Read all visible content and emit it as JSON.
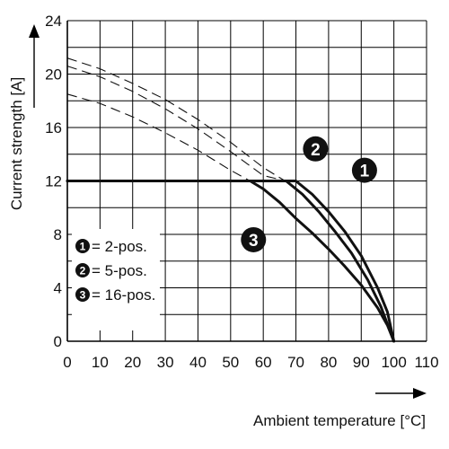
{
  "chart_data": {
    "type": "line",
    "xlabel": "Ambient temperature [°C]",
    "ylabel": "Current strength [A]",
    "xlim": [
      0,
      110
    ],
    "ylim": [
      0,
      24
    ],
    "x_ticks": [
      0,
      10,
      20,
      30,
      40,
      50,
      60,
      70,
      80,
      90,
      100,
      110
    ],
    "y_ticks": [
      0,
      4,
      8,
      12,
      16,
      20,
      24
    ],
    "grid": true,
    "legend_position": "bottom-left",
    "legend": [
      {
        "marker": "1",
        "label": "= 2-pos."
      },
      {
        "marker": "2",
        "label": "= 5-pos."
      },
      {
        "marker": "3",
        "label": "= 16-pos."
      }
    ],
    "series": [
      {
        "marker": "1",
        "style": "solid",
        "points": [
          [
            0,
            12
          ],
          [
            70,
            12
          ],
          [
            75,
            11
          ],
          [
            80,
            9.7
          ],
          [
            85,
            8.2
          ],
          [
            90,
            6.4
          ],
          [
            95,
            4
          ],
          [
            98,
            2.2
          ],
          [
            100,
            0
          ]
        ]
      },
      {
        "marker": "2",
        "style": "solid",
        "points": [
          [
            0,
            12
          ],
          [
            67,
            12
          ],
          [
            72,
            11
          ],
          [
            77,
            9.7
          ],
          [
            82,
            8.2
          ],
          [
            87,
            6.6
          ],
          [
            92,
            4.6
          ],
          [
            96,
            2.6
          ],
          [
            100,
            0
          ]
        ]
      },
      {
        "marker": "3",
        "style": "solid",
        "points": [
          [
            0,
            12
          ],
          [
            56,
            12
          ],
          [
            60,
            11.4
          ],
          [
            65,
            10.4
          ],
          [
            70,
            9.2
          ],
          [
            75,
            8.1
          ],
          [
            80,
            6.9
          ],
          [
            85,
            5.6
          ],
          [
            90,
            4.2
          ],
          [
            95,
            2.5
          ],
          [
            98,
            1.2
          ],
          [
            100,
            0
          ]
        ]
      },
      {
        "marker": "1",
        "style": "dashed",
        "points": [
          [
            0,
            21.2
          ],
          [
            10,
            20.4
          ],
          [
            20,
            19.3
          ],
          [
            30,
            18.1
          ],
          [
            40,
            16.6
          ],
          [
            50,
            14.9
          ],
          [
            60,
            13
          ],
          [
            70,
            11.5
          ]
        ]
      },
      {
        "marker": "2",
        "style": "dashed",
        "points": [
          [
            0,
            20.6
          ],
          [
            10,
            19.8
          ],
          [
            20,
            18.7
          ],
          [
            30,
            17.4
          ],
          [
            40,
            15.9
          ],
          [
            50,
            14.2
          ],
          [
            60,
            12.4
          ],
          [
            67,
            12
          ]
        ]
      },
      {
        "marker": "3",
        "style": "dashed",
        "points": [
          [
            0,
            18.5
          ],
          [
            10,
            17.8
          ],
          [
            20,
            16.8
          ],
          [
            30,
            15.6
          ],
          [
            40,
            14.3
          ],
          [
            50,
            12.8
          ],
          [
            56,
            12
          ]
        ]
      }
    ],
    "annotations": [
      {
        "marker": "1",
        "at": [
          91,
          12.8
        ]
      },
      {
        "marker": "2",
        "at": [
          76,
          14.4
        ]
      },
      {
        "marker": "3",
        "at": [
          57,
          7.6
        ]
      }
    ],
    "colors": {
      "line": "#111111",
      "grid": "#000000",
      "marker_fill": "#111111",
      "marker_text": "#ffffff"
    }
  }
}
